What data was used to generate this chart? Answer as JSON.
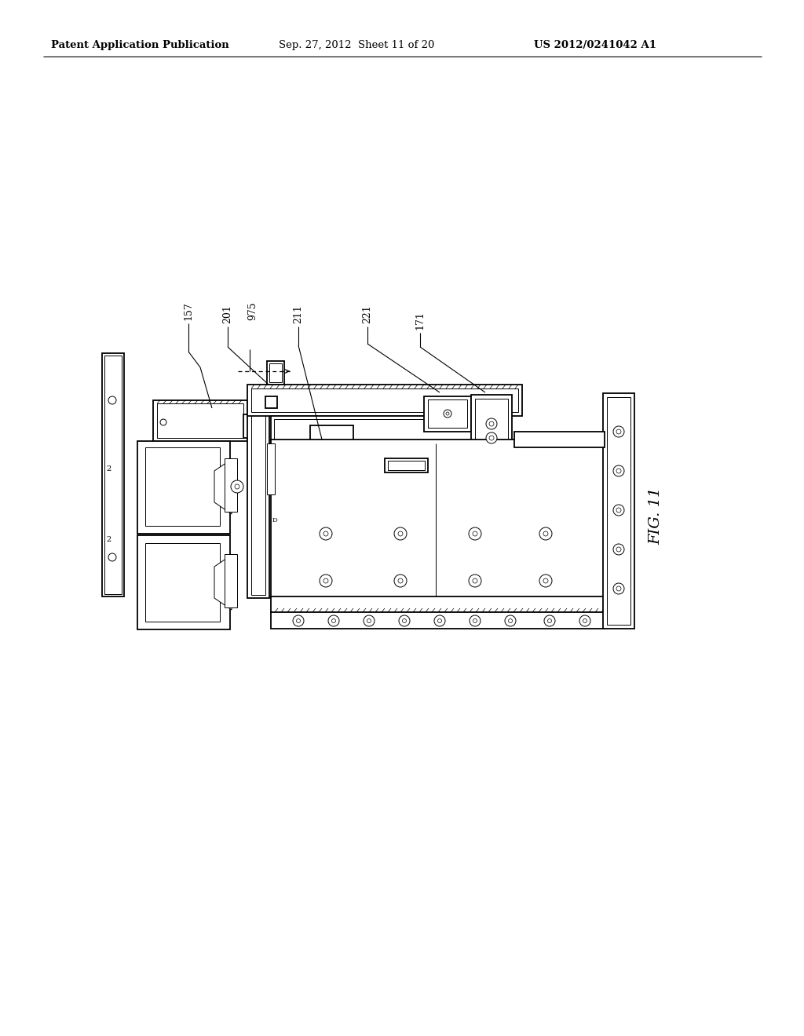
{
  "bg_color": "#ffffff",
  "header_left": "Patent Application Publication",
  "header_mid": "Sep. 27, 2012  Sheet 11 of 20",
  "header_right": "US 2012/0241042 A1",
  "fig_label": "FIG. 11",
  "label_975": "975",
  "label_157": "157",
  "label_201": "201",
  "label_211": "211",
  "label_221": "221",
  "label_171": "171",
  "line_color": "#000000",
  "lw_main": 1.3,
  "lw_thin": 0.7,
  "lw_xtra": 0.5
}
